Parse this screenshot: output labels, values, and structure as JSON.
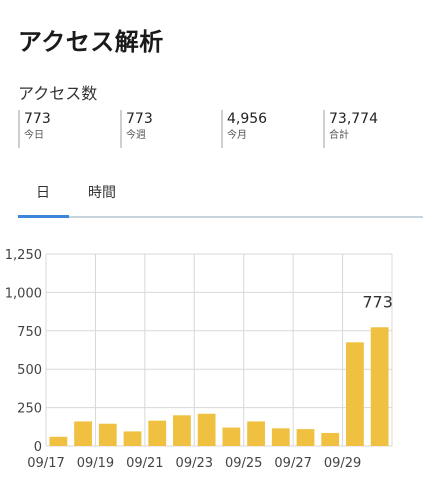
{
  "header": {
    "title": "アクセス解析"
  },
  "access": {
    "label": "アクセス数",
    "stats": [
      {
        "value": "773",
        "label": "今日"
      },
      {
        "value": "773",
        "label": "今週"
      },
      {
        "value": "4,956",
        "label": "今月"
      },
      {
        "value": "73,774",
        "label": "合計"
      }
    ]
  },
  "tabs": [
    {
      "label": "日",
      "active": true
    },
    {
      "label": "時間",
      "active": false
    }
  ],
  "colors": {
    "bar": "#f0c141",
    "tab_accent": "#3b86d8"
  },
  "chart_data": {
    "type": "bar",
    "categories": [
      "09/17",
      "09/18",
      "09/19",
      "09/20",
      "09/21",
      "09/22",
      "09/23",
      "09/24",
      "09/25",
      "09/26",
      "09/27",
      "09/28",
      "09/29",
      "09/30"
    ],
    "x_tick_labels": [
      "09/17",
      "09/19",
      "09/21",
      "09/23",
      "09/25",
      "09/27",
      "09/29"
    ],
    "values": [
      60,
      160,
      145,
      95,
      165,
      200,
      210,
      120,
      160,
      115,
      110,
      85,
      675,
      773
    ],
    "annotation": {
      "category": "09/30",
      "text": "773"
    },
    "y_ticks": [
      "0",
      "250",
      "500",
      "750",
      "1,000",
      "1,250"
    ],
    "ylim": [
      0,
      1250
    ],
    "grid": true,
    "title": "",
    "xlabel": "",
    "ylabel": ""
  }
}
